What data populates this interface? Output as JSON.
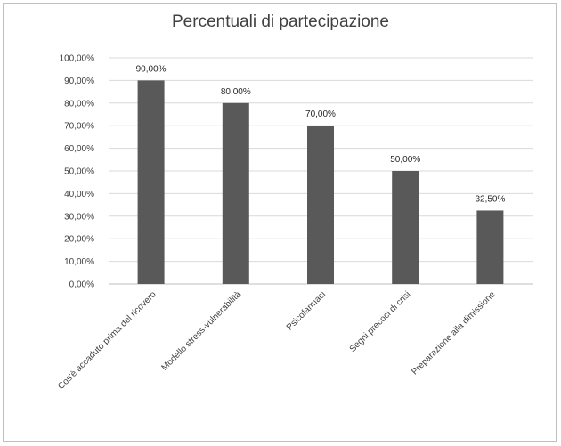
{
  "chart_data": {
    "type": "bar",
    "title": "Percentuali di partecipazione",
    "xlabel": "",
    "ylabel": "",
    "categories": [
      "Cos'è accaduto prima del ricovero",
      "Modello stress-vulnerabilità",
      "Psicofarmaci",
      "Segni precoci di crisi",
      "Preparazione alla dimissione"
    ],
    "values": [
      90.0,
      80.0,
      70.0,
      50.0,
      32.5
    ],
    "data_labels": [
      "90,00%",
      "80,00%",
      "70,00%",
      "50,00%",
      "32,50%"
    ],
    "ylim": [
      0,
      100
    ],
    "yticks": [
      "0,00%",
      "10,00%",
      "20,00%",
      "30,00%",
      "40,00%",
      "50,00%",
      "60,00%",
      "70,00%",
      "80,00%",
      "90,00%",
      "100,00%"
    ],
    "grid": true,
    "legend": "none",
    "colors": {
      "bar": "#595959",
      "grid": "#d9d9d9",
      "text": "#404040"
    }
  }
}
